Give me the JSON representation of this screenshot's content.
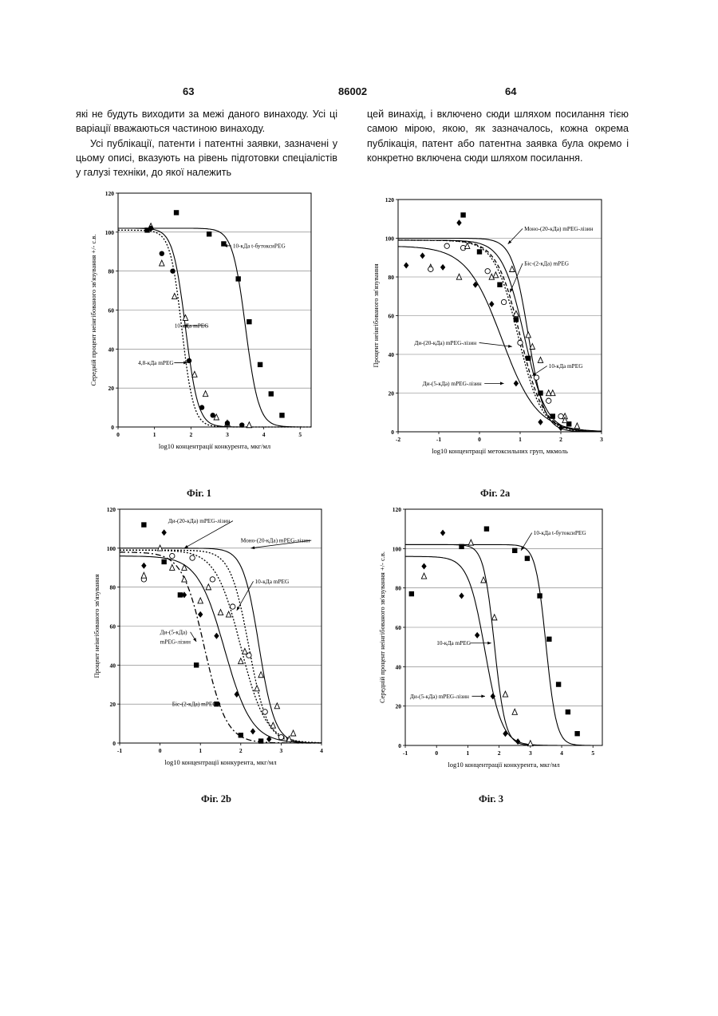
{
  "header": {
    "left_page": "63",
    "patent_number": "86002",
    "right_page": "64"
  },
  "text": {
    "left_p1": "які не будуть виходити за межі даного винаходу. Усі ці варіації вважаються частиною винаходу.",
    "left_p2": "Усі публікації, патенти і патентні заявки, зазначені у цьому описі, вказують на рівень підготовки спеціалістів у галузі техніки, до якої належить",
    "right_p1": "цей винахід, і включено сюди шляхом посилання тією самою мірою, якою, як зазначалось, кожна окрема публікація, патент або патентна заявка була окремо і конкретно включена сюди шляхом посилання."
  },
  "chart_data": [
    {
      "type": "scatter",
      "caption": "Фіг. 1",
      "xlabel": "log10 концентрації конкурента, мкг/мл",
      "ylabel": "Середній процент неінгібованого зв'язування +/- с.в.",
      "xlim": [
        0,
        5.3
      ],
      "ylim": [
        0,
        120
      ],
      "xticks": [
        0,
        1,
        2,
        3,
        4,
        5
      ],
      "yticks": [
        0,
        20,
        40,
        60,
        80,
        100,
        120
      ],
      "grid": true,
      "series": [
        {
          "name": "10-кДа t-бутоксиPEG",
          "marker": "square",
          "curve": {
            "top": 102,
            "ec50": 3.5,
            "slope": 2.4,
            "style": "solid"
          },
          "x": [
            0.8,
            1.6,
            2.5,
            2.9,
            3.3,
            3.6,
            3.9,
            4.2,
            4.5
          ],
          "y": [
            101,
            110,
            99,
            94,
            76,
            54,
            32,
            17,
            6
          ]
        },
        {
          "name": "10-кДа mPEG",
          "marker": "triangle",
          "curve": {
            "top": 102,
            "ec50": 1.85,
            "slope": 2.5,
            "style": "solid"
          },
          "x": [
            0.9,
            1.2,
            1.55,
            1.85,
            2.1,
            2.4,
            2.7,
            3.0,
            3.6
          ],
          "y": [
            103,
            84,
            67,
            56,
            27,
            17,
            5,
            2,
            1
          ]
        },
        {
          "name": "4,8-кДа mPEG",
          "marker": "circle",
          "curve": {
            "top": 101,
            "ec50": 1.75,
            "slope": 2.7,
            "style": "dotted"
          },
          "x": [
            0.9,
            1.2,
            1.5,
            1.95,
            2.3,
            2.6,
            3.0,
            3.4
          ],
          "y": [
            102,
            89,
            80,
            34,
            10,
            6,
            2,
            1
          ]
        }
      ],
      "annotations": [
        {
          "text": "10-кДа t-бутоксиPEG",
          "x": 3.15,
          "y": 93,
          "ax": 2.9,
          "ay": 93
        },
        {
          "text": "10-кДа mPEG",
          "x": 1.55,
          "y": 52,
          "ax": 1.8,
          "ay": 52
        },
        {
          "text": "4,8-кДа mPEG",
          "x": 0.55,
          "y": 33,
          "ax": 1.9,
          "ay": 33
        }
      ]
    },
    {
      "type": "scatter",
      "caption": "Фіг. 2a",
      "xlabel": "log10 концентрації метоксильних груп, мкмоль",
      "ylabel": "Процент неінгібованого зв'язування",
      "xlim": [
        -2,
        3
      ],
      "ylim": [
        0,
        120
      ],
      "xticks": [
        -2,
        -1,
        0,
        1,
        2,
        3
      ],
      "yticks": [
        0,
        20,
        40,
        60,
        80,
        100,
        120
      ],
      "grid": true,
      "series": [
        {
          "name": "Моно-(20-кДа) mPEG-лізин",
          "marker": "triangle",
          "curve": {
            "top": 100,
            "ec50": 1.2,
            "slope": 2.2,
            "style": "solid"
          },
          "x": [
            -1.2,
            -0.5,
            0.3,
            0.8,
            1.2,
            1.5,
            1.8,
            2.1,
            2.4
          ],
          "y": [
            85,
            80,
            80,
            84,
            50,
            37,
            20,
            8,
            3
          ]
        },
        {
          "name": "Біс-(2-кДа) mPEG",
          "marker": "square",
          "curve": {
            "top": 99,
            "ec50": 1.0,
            "slope": 1.5,
            "style": "dashed"
          },
          "x": [
            -0.4,
            0.0,
            0.5,
            0.9,
            1.2,
            1.5,
            1.8,
            2.2
          ],
          "y": [
            112,
            93,
            76,
            58,
            38,
            20,
            8,
            4
          ]
        },
        {
          "name": "10-кДа mPEG",
          "marker": "open-circle",
          "curve": {
            "top": 99,
            "ec50": 1.1,
            "slope": 1.6,
            "style": "solid"
          },
          "x": [
            -1.2,
            -0.8,
            -0.4,
            0.2,
            0.6,
            1.0,
            1.4,
            1.7,
            2.0
          ],
          "y": [
            84,
            96,
            95,
            83,
            67,
            46,
            28,
            16,
            8
          ]
        },
        {
          "name": "Ди-(20-кДа) mPEG-лізин",
          "marker": "triangle",
          "curve": {
            "top": 99,
            "ec50": 0.95,
            "slope": 1.5,
            "style": "dotted"
          },
          "x": [
            -0.3,
            0.4,
            0.9,
            1.3,
            1.7,
            2.1
          ],
          "y": [
            96,
            81,
            61,
            44,
            20,
            6
          ]
        },
        {
          "name": "Ди-(5-кДа) mPEG-лізин",
          "marker": "diamond",
          "curve": {
            "top": 96,
            "ec50": 0.55,
            "slope": 1.0,
            "style": "solid"
          },
          "x": [
            -1.8,
            -1.4,
            -0.9,
            -0.5,
            -0.1,
            0.3,
            0.9,
            1.5,
            2.0
          ],
          "y": [
            86,
            91,
            85,
            108,
            76,
            66,
            25,
            5,
            2
          ]
        }
      ],
      "annotations": [
        {
          "text": "Моно-(20-кДа) mPEG-лізин",
          "x": 1.1,
          "y": 105,
          "ax": 0.7,
          "ay": 97
        },
        {
          "text": "Біс-(2-кДа) mPEG",
          "x": 1.1,
          "y": 87,
          "ax": 0.75,
          "ay": 72
        },
        {
          "text": "Ди-(20-кДа) mPEG-лізин",
          "x": -1.6,
          "y": 46,
          "ax": 0.8,
          "ay": 44
        },
        {
          "text": "10-кДа mPEG",
          "x": 1.7,
          "y": 34,
          "ax": 1.3,
          "ay": 29
        },
        {
          "text": "Ди-(5-кДа) mPEG-лізин",
          "x": -1.4,
          "y": 25,
          "ax": 0.6,
          "ay": 25
        }
      ]
    },
    {
      "type": "scatter",
      "caption": "Фіг. 2b",
      "xlabel": "log10 концентрації конкурента, мкг/мл",
      "ylabel": "Процент неінгібованого зв'язування",
      "xlim": [
        -1,
        4
      ],
      "ylim": [
        0,
        120
      ],
      "xticks": [
        -1,
        0,
        1,
        2,
        3,
        4
      ],
      "yticks": [
        0,
        20,
        40,
        60,
        80,
        100,
        120
      ],
      "grid": true,
      "series": [
        {
          "name": "Ди-(20-кДа) mPEG-лізин",
          "marker": "open-circle",
          "curve": {
            "top": 99,
            "ec50": 2.0,
            "slope": 1.4,
            "style": "dotted"
          },
          "x": [
            -0.4,
            0.3,
            0.8,
            1.3,
            1.8,
            2.2,
            2.6,
            3.0
          ],
          "y": [
            84,
            96,
            95,
            84,
            70,
            45,
            16,
            3
          ]
        },
        {
          "name": "Моно-(20-кДа) mPEG-лізин",
          "marker": "triangle",
          "curve": {
            "top": 100,
            "ec50": 2.45,
            "slope": 2.2,
            "style": "solid"
          },
          "x": [
            -0.4,
            0.3,
            0.6,
            1.0,
            1.5,
            2.0,
            2.5,
            2.9,
            3.3
          ],
          "y": [
            86,
            90,
            84,
            73,
            67,
            42,
            35,
            19,
            5
          ]
        },
        {
          "name": "10-кДа mPEG",
          "marker": "triangle",
          "curve": {
            "top": 99,
            "ec50": 2.2,
            "slope": 1.9,
            "style": "dotted"
          },
          "x": [
            0.0,
            0.6,
            1.2,
            1.7,
            2.1,
            2.4,
            2.8,
            3.2
          ],
          "y": [
            100,
            90,
            80,
            66,
            47,
            28,
            9,
            2
          ]
        },
        {
          "name": "Ди-(5-кДа) mPEG-лізин",
          "marker": "diamond",
          "curve": {
            "top": 96,
            "ec50": 1.6,
            "slope": 1.3,
            "style": "solid"
          },
          "x": [
            -0.4,
            0.1,
            0.6,
            1.0,
            1.4,
            1.9,
            2.3,
            2.7
          ],
          "y": [
            91,
            108,
            76,
            66,
            55,
            25,
            6,
            2
          ]
        },
        {
          "name": "Біс-(2-кДа) mPEG",
          "marker": "square",
          "curve": {
            "top": 98,
            "ec50": 1.1,
            "slope": 1.6,
            "style": "dashdot"
          },
          "x": [
            -0.4,
            0.1,
            0.5,
            0.9,
            1.4,
            2.0,
            2.5
          ],
          "y": [
            112,
            93,
            76,
            40,
            20,
            4,
            1
          ]
        }
      ],
      "annotations": [
        {
          "text": "Ди-(20-кДа) mPEG-лізин",
          "x": 0.2,
          "y": 114,
          "ax": 0.6,
          "ay": 100
        },
        {
          "text": "Моно-(20-кДа) mPEG-лізин",
          "x": 2.0,
          "y": 104,
          "ax": 2.25,
          "ay": 100
        },
        {
          "text": "10-кДа mPEG",
          "x": 2.35,
          "y": 83,
          "ax": 1.9,
          "ay": 68
        },
        {
          "text": "Ди-(5-кДа)",
          "x": 0.0,
          "y": 57,
          "ax": 0.9,
          "ay": 52
        },
        {
          "text": "mPEG-лізин",
          "x": 0.0,
          "y": 52
        },
        {
          "text": "Біс-(2-кДа) mPEG",
          "x": 0.3,
          "y": 20,
          "ax": 1.4,
          "ay": 20
        }
      ]
    },
    {
      "type": "scatter",
      "caption": "Фіг. 3",
      "xlabel": "log10 концентрації конкурента, мкг/мл",
      "ylabel": "Середній процент неінгібованого зв'язування +/- с.в.",
      "xlim": [
        -1,
        5.3
      ],
      "ylim": [
        0,
        120
      ],
      "xticks": [
        -1,
        0,
        1,
        2,
        3,
        4,
        5
      ],
      "yticks": [
        0,
        20,
        40,
        60,
        80,
        100,
        120
      ],
      "grid": true,
      "series": [
        {
          "name": "10-кДа t-бутоксиPEG",
          "marker": "square",
          "curve": {
            "top": 102,
            "ec50": 3.5,
            "slope": 2.6,
            "style": "solid"
          },
          "x": [
            -0.8,
            0.8,
            1.6,
            2.5,
            2.9,
            3.3,
            3.6,
            3.9,
            4.2,
            4.5
          ],
          "y": [
            77,
            101,
            110,
            99,
            95,
            76,
            54,
            31,
            17,
            6
          ]
        },
        {
          "name": "10-кДа mPEG",
          "marker": "triangle",
          "curve": {
            "top": 102,
            "ec50": 1.85,
            "slope": 2.5,
            "style": "solid"
          },
          "x": [
            -0.4,
            1.1,
            1.5,
            1.85,
            2.2,
            2.5,
            3.0
          ],
          "y": [
            86,
            103,
            84,
            65,
            26,
            17,
            1
          ]
        },
        {
          "name": "Ди-(5-кДа) mPEG-лізин",
          "marker": "diamond",
          "curve": {
            "top": 96,
            "ec50": 1.55,
            "slope": 1.6,
            "style": "solid"
          },
          "x": [
            -0.4,
            0.2,
            0.8,
            1.3,
            1.8,
            2.2,
            2.6
          ],
          "y": [
            91,
            108,
            76,
            56,
            25,
            6,
            2
          ]
        }
      ],
      "annotations": [
        {
          "text": "10-кДа t-бутоксиPEG",
          "x": 3.1,
          "y": 108,
          "ax": 2.7,
          "ay": 99
        },
        {
          "text": "10-кДа mPEG",
          "x": 0.0,
          "y": 52,
          "ax": 1.75,
          "ay": 52
        },
        {
          "text": "Ди-(5-кДа) mPEG-лізин",
          "x": -0.85,
          "y": 25,
          "ax": 1.55,
          "ay": 25
        }
      ]
    }
  ]
}
